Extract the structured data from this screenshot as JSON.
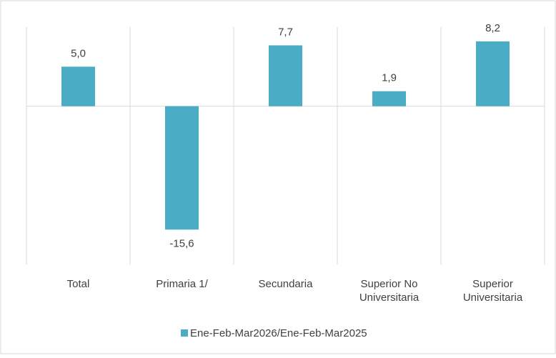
{
  "chart_data": {
    "type": "bar",
    "categories": [
      "Total",
      "Primaria 1/",
      "Secundaria",
      "Superior No Universitaria",
      "Superior Universitaria"
    ],
    "series": [
      {
        "name": "Ene-Feb-Mar2026/Ene-Feb-Mar2025",
        "color": "#4bacc6",
        "values": [
          5.0,
          -15.6,
          7.7,
          1.9,
          8.2
        ],
        "value_labels": [
          "5,0",
          "-15,6",
          "7,7",
          "1,9",
          "8,2"
        ]
      }
    ],
    "ylim": [
      -20,
      10
    ],
    "legend": "bottom"
  }
}
